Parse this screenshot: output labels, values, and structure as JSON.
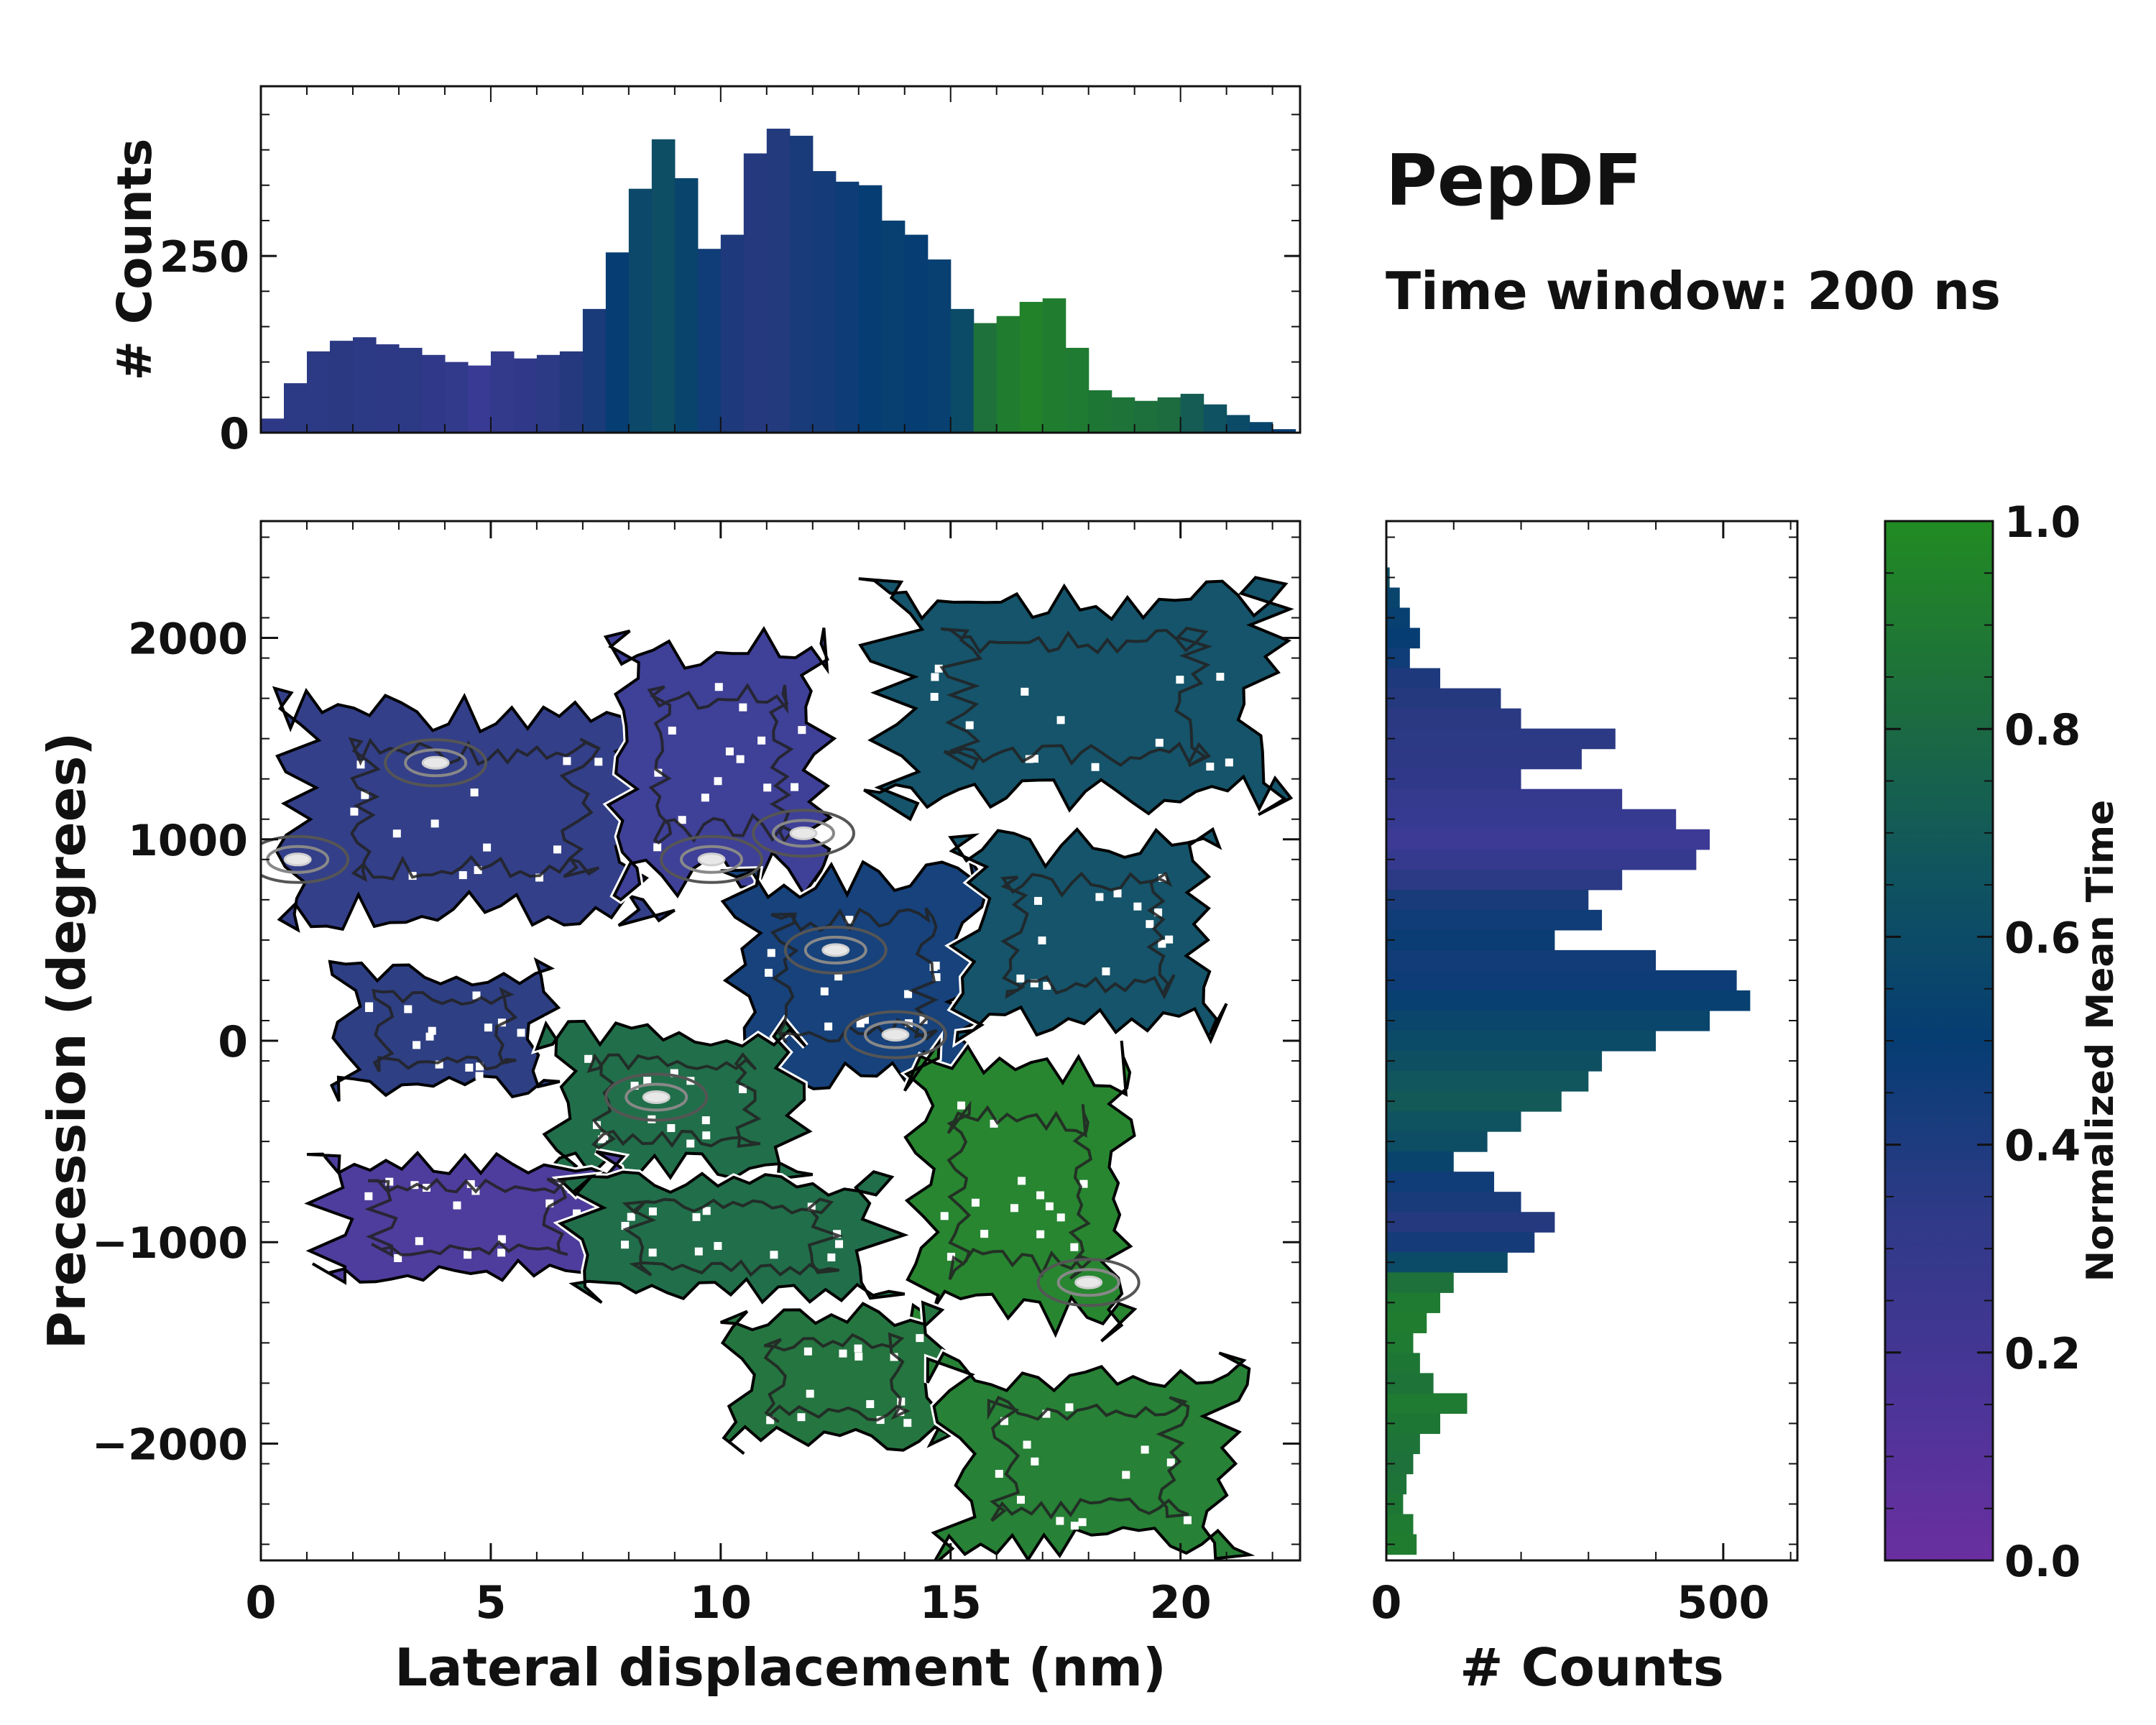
{
  "colors": {
    "cmap": [
      "#6a2fa0",
      "#3b3a96",
      "#28397f",
      "#063d73",
      "#10545f",
      "#1d6e3d",
      "#228b22"
    ],
    "frame": "#111111",
    "contour_outer": "#000000",
    "contour_inner": "#555555",
    "contour_peak": "#d9d9d9"
  },
  "chart_data": [
    {
      "id": "top-histogram",
      "type": "bar",
      "xlim": [
        0,
        22.6
      ],
      "ylim": [
        0,
        490
      ],
      "yticks": [
        0,
        250
      ],
      "ylabel": "# Counts",
      "x_bin_centers": [
        0.25,
        0.75,
        1.25,
        1.75,
        2.25,
        2.75,
        3.25,
        3.75,
        4.25,
        4.75,
        5.25,
        5.75,
        6.25,
        6.75,
        7.25,
        7.75,
        8.25,
        8.75,
        9.25,
        9.75,
        10.25,
        10.75,
        11.25,
        11.75,
        12.25,
        12.75,
        13.25,
        13.75,
        14.25,
        14.75,
        15.25,
        15.75,
        16.25,
        16.75,
        17.25,
        17.75,
        18.25,
        18.75,
        19.25,
        19.75,
        20.25,
        20.75,
        21.25,
        21.75,
        22.25
      ],
      "counts": [
        20,
        70,
        115,
        130,
        135,
        125,
        120,
        110,
        100,
        95,
        115,
        105,
        110,
        115,
        175,
        255,
        345,
        415,
        360,
        260,
        280,
        395,
        430,
        420,
        370,
        355,
        350,
        300,
        280,
        245,
        175,
        155,
        165,
        185,
        190,
        120,
        60,
        50,
        45,
        50,
        55,
        40,
        25,
        15,
        5
      ],
      "color_values": [
        0.28,
        0.3,
        0.3,
        0.32,
        0.3,
        0.28,
        0.3,
        0.26,
        0.25,
        0.18,
        0.24,
        0.26,
        0.3,
        0.35,
        0.4,
        0.5,
        0.58,
        0.62,
        0.55,
        0.45,
        0.38,
        0.35,
        0.36,
        0.4,
        0.42,
        0.46,
        0.5,
        0.52,
        0.5,
        0.52,
        0.6,
        0.85,
        0.92,
        0.95,
        0.92,
        0.9,
        0.88,
        0.86,
        0.84,
        0.82,
        0.72,
        0.65,
        0.6,
        0.55,
        0.5
      ]
    },
    {
      "id": "main-density",
      "type": "heatmap",
      "xlabel": "Lateral displacement (nm)",
      "ylabel": "Precession (degrees)",
      "xlim": [
        0,
        22.6
      ],
      "ylim": [
        -2580,
        2580
      ],
      "xticks": [
        0,
        5,
        10,
        15,
        20
      ],
      "yticks": [
        -2000,
        -1000,
        0,
        1000,
        2000
      ],
      "ytick_labels": [
        "−2000",
        "−1000",
        "0",
        "1000",
        "2000"
      ],
      "contours": "density contour lines (black outer, grey inner, light-grey peaks)",
      "color_regions": [
        {
          "name": "upper-left cluster",
          "x_range": [
            0.3,
            9.0
          ],
          "y_range": [
            550,
            1750
          ],
          "value": 0.3
        },
        {
          "name": "upper-middle cluster",
          "x_range": [
            7.5,
            12.5
          ],
          "y_range": [
            700,
            2050
          ],
          "value": 0.18
        },
        {
          "name": "upper-right arm",
          "x_range": [
            13.0,
            22.4
          ],
          "y_range": [
            1100,
            2300
          ],
          "value": 0.62
        },
        {
          "name": "center core",
          "x_range": [
            10.0,
            15.8
          ],
          "y_range": [
            -250,
            900
          ],
          "value": 0.45
        },
        {
          "name": "right middle",
          "x_range": [
            15.0,
            21.0
          ],
          "y_range": [
            0,
            1050
          ],
          "value": 0.62
        },
        {
          "name": "left middle",
          "x_range": [
            1.5,
            6.5
          ],
          "y_range": [
            -300,
            400
          ],
          "value": 0.34
        },
        {
          "name": "lower-left center",
          "x_range": [
            6.0,
            12.0
          ],
          "y_range": [
            -700,
            100
          ],
          "value": 0.8
        },
        {
          "name": "lower-left tail",
          "x_range": [
            1.0,
            8.0
          ],
          "y_range": [
            -1200,
            -550
          ],
          "value": 0.12
        },
        {
          "name": "lower center",
          "x_range": [
            6.5,
            14.0
          ],
          "y_range": [
            -1300,
            -650
          ],
          "value": 0.8
        },
        {
          "name": "lower-right",
          "x_range": [
            14.0,
            19.0
          ],
          "y_range": [
            -1500,
            0
          ],
          "value": 0.95
        },
        {
          "name": "bottom branch",
          "x_range": [
            10.0,
            15.0
          ],
          "y_range": [
            -2050,
            -1300
          ],
          "value": 0.85
        },
        {
          "name": "bottom-right branch",
          "x_range": [
            14.5,
            21.5
          ],
          "y_range": [
            -2600,
            -1550
          ],
          "value": 0.92
        }
      ],
      "density_peaks": [
        {
          "x": 3.8,
          "y": 1380
        },
        {
          "x": 0.8,
          "y": 900
        },
        {
          "x": 9.8,
          "y": 900
        },
        {
          "x": 11.8,
          "y": 1030
        },
        {
          "x": 12.5,
          "y": 450
        },
        {
          "x": 13.8,
          "y": 30
        },
        {
          "x": 8.6,
          "y": -280
        },
        {
          "x": 18.0,
          "y": -1200
        }
      ]
    },
    {
      "id": "right-histogram",
      "type": "bar",
      "orientation": "horizontal",
      "xlim": [
        0,
        610
      ],
      "xticks": [
        0,
        500
      ],
      "xlabel": "# Counts",
      "y_bin_centers": [
        2300,
        2200,
        2100,
        2000,
        1900,
        1800,
        1700,
        1600,
        1500,
        1400,
        1300,
        1200,
        1100,
        1000,
        900,
        800,
        700,
        600,
        500,
        400,
        300,
        200,
        100,
        0,
        -100,
        -200,
        -300,
        -400,
        -500,
        -600,
        -700,
        -800,
        -900,
        -1000,
        -1100,
        -1200,
        -1300,
        -1400,
        -1500,
        -1600,
        -1700,
        -1800,
        -1900,
        -2000,
        -2100,
        -2200,
        -2300,
        -2400,
        -2500
      ],
      "counts": [
        5,
        20,
        35,
        50,
        35,
        80,
        170,
        200,
        340,
        290,
        200,
        350,
        430,
        480,
        460,
        350,
        300,
        320,
        250,
        400,
        520,
        540,
        480,
        400,
        320,
        300,
        260,
        200,
        150,
        100,
        160,
        200,
        250,
        220,
        180,
        100,
        80,
        60,
        40,
        50,
        70,
        120,
        80,
        50,
        40,
        30,
        25,
        40,
        45
      ],
      "color_values": [
        0.62,
        0.55,
        0.52,
        0.5,
        0.45,
        0.38,
        0.35,
        0.32,
        0.3,
        0.28,
        0.26,
        0.22,
        0.2,
        0.16,
        0.22,
        0.3,
        0.4,
        0.45,
        0.48,
        0.44,
        0.46,
        0.52,
        0.56,
        0.6,
        0.64,
        0.68,
        0.7,
        0.66,
        0.62,
        0.55,
        0.45,
        0.4,
        0.35,
        0.42,
        0.6,
        0.85,
        0.9,
        0.92,
        0.9,
        0.88,
        0.86,
        0.9,
        0.88,
        0.86,
        0.85,
        0.86,
        0.88,
        0.9,
        0.92
      ]
    },
    {
      "id": "colorbar",
      "type": "colorbar",
      "label": "Normalized Mean Time",
      "range": [
        0,
        1
      ],
      "ticks": [
        "0.0",
        "0.2",
        "0.4",
        "0.6",
        "0.8",
        "1.0"
      ]
    }
  ],
  "annotations": {
    "title": "PepDF",
    "subtitle": "Time window: 200 ns"
  }
}
